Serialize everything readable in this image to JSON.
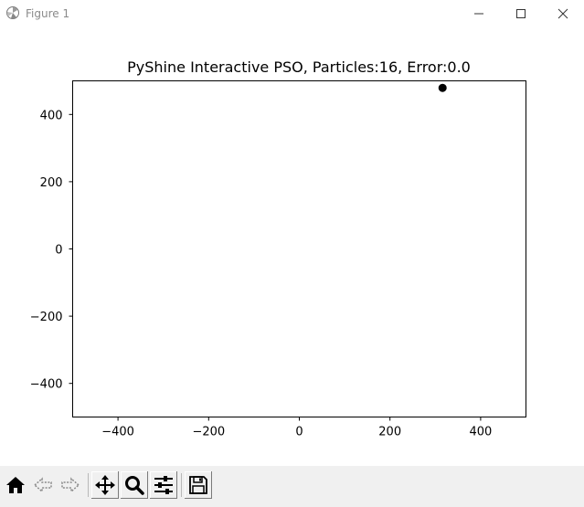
{
  "window": {
    "title": "Figure 1",
    "controls": [
      "minimize",
      "maximize",
      "close"
    ]
  },
  "toolbar": {
    "buttons": [
      {
        "name": "home",
        "icon": "home-icon"
      },
      {
        "name": "back",
        "icon": "back-arrow-icon"
      },
      {
        "name": "forward",
        "icon": "forward-arrow-icon"
      },
      {
        "name": "pan",
        "icon": "move-icon"
      },
      {
        "name": "zoom",
        "icon": "magnifier-icon"
      },
      {
        "name": "configure-subplots",
        "icon": "sliders-icon"
      },
      {
        "name": "save",
        "icon": "floppy-disk-icon"
      }
    ]
  },
  "chart_data": {
    "type": "scatter",
    "title": "PyShine Interactive PSO, Particles:16, Error:0.0",
    "xlabel": "",
    "ylabel": "",
    "xlim": [
      -500,
      500
    ],
    "ylim": [
      -500,
      500
    ],
    "xticks": [
      -400,
      -200,
      0,
      200,
      400
    ],
    "yticks": [
      -400,
      -200,
      0,
      200,
      400
    ],
    "xtick_labels": [
      "−400",
      "−200",
      "0",
      "200",
      "400"
    ],
    "ytick_labels": [
      "−400",
      "−200",
      "0",
      "200",
      "400"
    ],
    "grid": false,
    "points": [
      {
        "x": 316,
        "y": 479
      }
    ],
    "marker_color": "#000000"
  }
}
